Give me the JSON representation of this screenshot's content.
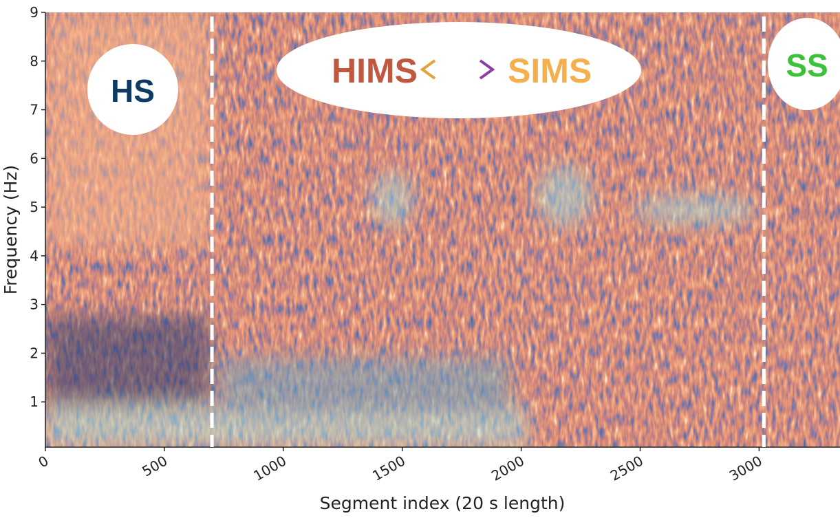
{
  "chart_data": {
    "type": "heatmap",
    "x_label": "Segment index (20 s length)",
    "y_label": "Frequency (Hz)",
    "xlim": [
      0,
      3340
    ],
    "ylim": [
      0.07,
      9
    ],
    "xticks": [
      0,
      500,
      1000,
      1500,
      2000,
      2500,
      3000
    ],
    "yticks": [
      1,
      2,
      3,
      4,
      5,
      6,
      7,
      8,
      9
    ],
    "state_boundaries": [
      700,
      3020
    ],
    "annotations": [
      "HS",
      "HIMS",
      "SIMS",
      "SS"
    ]
  }
}
